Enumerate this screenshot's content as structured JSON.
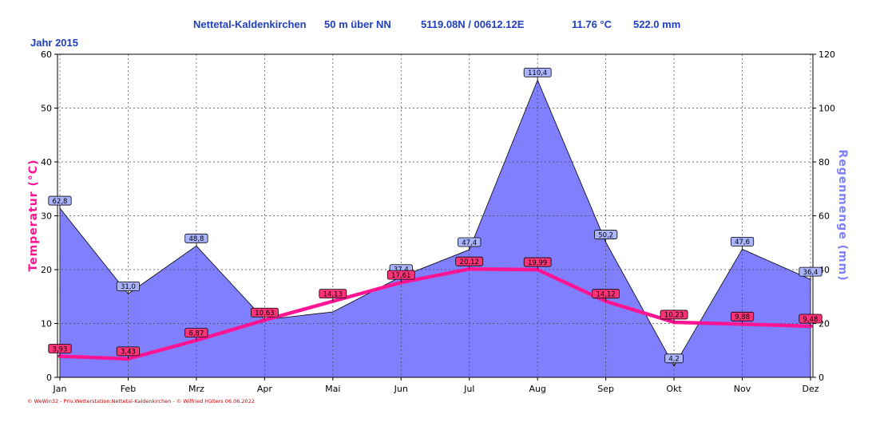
{
  "header": {
    "station": "Nettetal-Kaldenkirchen",
    "elevation": "50 m über NN",
    "coords": "5119.08N / 00612.12E",
    "avg_temp": "11.76 °C",
    "total_rain": "522.0 mm"
  },
  "year_label": "Jahr  2015",
  "footer": "© WeWin32 - Priv.Wetterstation:Nettetal-Kaldenkirchen - © Wilfried Hülters 06.06.2022",
  "chart_data": {
    "type": "line",
    "categories": [
      "Jan",
      "Feb",
      "Mrz",
      "Apr",
      "Mai",
      "Jun",
      "Jul",
      "Aug",
      "Sep",
      "Okt",
      "Nov",
      "Dez"
    ],
    "series": [
      {
        "name": "Temperatur (°C)",
        "axis": "left",
        "chart_kind": "line",
        "color": "#ff1493",
        "values": [
          3.93,
          3.43,
          6.87,
          10.63,
          14.13,
          17.61,
          20.12,
          19.99,
          14.12,
          10.23,
          9.88,
          9.48
        ],
        "labels": [
          "3,93",
          "3,43",
          "6,87",
          "10,63",
          "14,13",
          "17,61",
          "20,12",
          "19,99",
          "14,12",
          "10,23",
          "9,88",
          "9,48"
        ]
      },
      {
        "name": "Regenmenge (mm)",
        "axis": "right",
        "chart_kind": "area",
        "color": "#8080ff",
        "values": [
          62.8,
          31.0,
          48.8,
          21.4,
          24.3,
          37.4,
          47.4,
          110.4,
          50.2,
          4.2,
          47.6,
          36.4
        ],
        "labels": [
          "62,8",
          "31,0",
          "48,8",
          "",
          "",
          "37,4",
          "47,4",
          "110,4",
          "50,2",
          "4,2",
          "47,6",
          "36,4"
        ]
      }
    ],
    "y_left": {
      "label": "Temperatur  (°C)",
      "ticks": [
        "0",
        "10",
        "20",
        "30",
        "40",
        "50",
        "60"
      ],
      "lim": [
        0,
        60
      ]
    },
    "y_right": {
      "label": "Regenmenge  (mm)",
      "ticks": [
        "0",
        "20",
        "40",
        "60",
        "80",
        "100",
        "120"
      ],
      "lim": [
        0,
        120
      ]
    },
    "grid": true,
    "colors": {
      "temp": "#ff1493",
      "rain_fill": "#8080ff",
      "rain_label": "#aab4ff",
      "temp_label": "#ff3377",
      "header": "#1f3fbf"
    }
  }
}
